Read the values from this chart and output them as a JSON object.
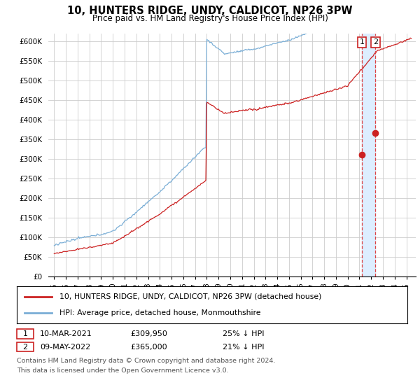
{
  "title": "10, HUNTERS RIDGE, UNDY, CALDICOT, NP26 3PW",
  "subtitle": "Price paid vs. HM Land Registry's House Price Index (HPI)",
  "ylim": [
    0,
    620000
  ],
  "yticks": [
    0,
    50000,
    100000,
    150000,
    200000,
    250000,
    300000,
    350000,
    400000,
    450000,
    500000,
    550000,
    600000
  ],
  "hpi_color": "#7aaed6",
  "price_color": "#cc2222",
  "dashed_line_color": "#dd4444",
  "highlight_color": "#ddeeff",
  "background_color": "#ffffff",
  "grid_color": "#cccccc",
  "legend_entries": [
    "10, HUNTERS RIDGE, UNDY, CALDICOT, NP26 3PW (detached house)",
    "HPI: Average price, detached house, Monmouthshire"
  ],
  "sale1_date": "10-MAR-2021",
  "sale1_price": "£309,950",
  "sale1_note": "25% ↓ HPI",
  "sale2_date": "09-MAY-2022",
  "sale2_price": "£365,000",
  "sale2_note": "21% ↓ HPI",
  "footnote1": "Contains HM Land Registry data © Crown copyright and database right 2024.",
  "footnote2": "This data is licensed under the Open Government Licence v3.0.",
  "marker1_price": 309950,
  "marker2_price": 365000,
  "sale1_year": 2021.21,
  "sale2_year": 2022.37
}
